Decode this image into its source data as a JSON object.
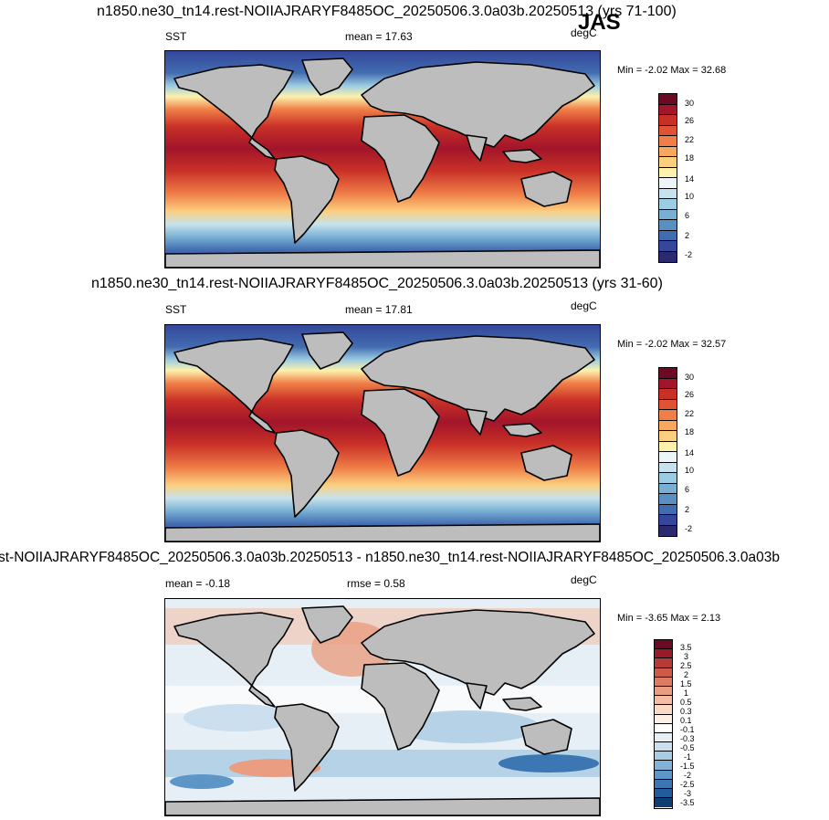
{
  "season": "JAS",
  "panels": [
    {
      "title": "n1850.ne30_tn14.rest-NOIIAJRARYF8485OC_20250506.3.0a03b.20250513 (yrs 71-100)",
      "left_label": "SST",
      "center_label": "mean =  17.63",
      "units": "degC",
      "minmax": "Min =  -2.02 Max =  32.68",
      "colorbar_labels": [
        "30",
        "26",
        "22",
        "18",
        "14",
        "10",
        "6",
        "2",
        "-2"
      ]
    },
    {
      "title": "n1850.ne30_tn14.rest-NOIIAJRARYF8485OC_20250506.3.0a03b.20250513 (yrs 31-60)",
      "left_label": "SST",
      "center_label": "mean =  17.81",
      "units": "degC",
      "minmax": "Min =  -2.02 Max =  32.57",
      "colorbar_labels": [
        "30",
        "26",
        "22",
        "18",
        "14",
        "10",
        "6",
        "2",
        "-2"
      ]
    },
    {
      "title": "st-NOIIAJRARYF8485OC_20250506.3.0a03b.20250513 - n1850.ne30_tn14.rest-NOIIAJRARYF8485OC_20250506.3.0a03b",
      "left_label": "mean =  -0.18",
      "center_label": "rmse =   0.58",
      "units": "degC",
      "minmax": "Min =  -3.65 Max =   2.13",
      "colorbar_labels": [
        "3.5",
        "3",
        "2.5",
        "2",
        "1.5",
        "1",
        "0.5",
        "0.3",
        "0.1",
        "-0.1",
        "-0.3",
        "-0.5",
        "-1",
        "-1.5",
        "-2",
        "-2.5",
        "-3",
        "-3.5"
      ]
    }
  ],
  "colors": {
    "land": "#bdbdbd",
    "sst_scale": [
      "#6b0a22",
      "#a2152a",
      "#c83027",
      "#e05332",
      "#f07e47",
      "#f8a85d",
      "#fbcf80",
      "#fdf1ac",
      "#ecf5f7",
      "#c6e2ec",
      "#9ccce2",
      "#78afd3",
      "#5a8fc2",
      "#426cb0",
      "#34479a",
      "#2c2a6e"
    ],
    "diff_scale": [
      "#6b0a22",
      "#9b1a2a",
      "#b73a36",
      "#cd5b48",
      "#dd7c62",
      "#ea9d81",
      "#f4bca3",
      "#f9d8c6",
      "#fdefe6",
      "#ffffff",
      "#e6eff6",
      "#cbdfee",
      "#a9cbe4",
      "#83b2d7",
      "#5e95c7",
      "#3c77b4",
      "#235c9c",
      "#0e3d72"
    ]
  }
}
